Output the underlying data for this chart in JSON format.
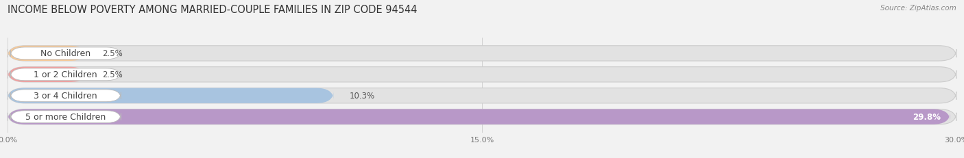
{
  "title": "INCOME BELOW POVERTY AMONG MARRIED-COUPLE FAMILIES IN ZIP CODE 94544",
  "source": "Source: ZipAtlas.com",
  "categories": [
    "No Children",
    "1 or 2 Children",
    "3 or 4 Children",
    "5 or more Children"
  ],
  "values": [
    2.5,
    2.5,
    10.3,
    29.8
  ],
  "value_labels": [
    "2.5%",
    "2.5%",
    "10.3%",
    "29.8%"
  ],
  "bar_colors": [
    "#f5c99a",
    "#f0a0a0",
    "#a8c4e0",
    "#b898c8"
  ],
  "xlim": [
    0,
    30.0
  ],
  "xticks": [
    0.0,
    15.0,
    30.0
  ],
  "xtick_labels": [
    "0.0%",
    "15.0%",
    "30.0%"
  ],
  "bar_height": 0.72,
  "background_color": "#f2f2f2",
  "bar_bg_color": "#e2e2e2",
  "title_fontsize": 10.5,
  "label_fontsize": 9,
  "value_fontsize": 8.5,
  "source_fontsize": 7.5
}
